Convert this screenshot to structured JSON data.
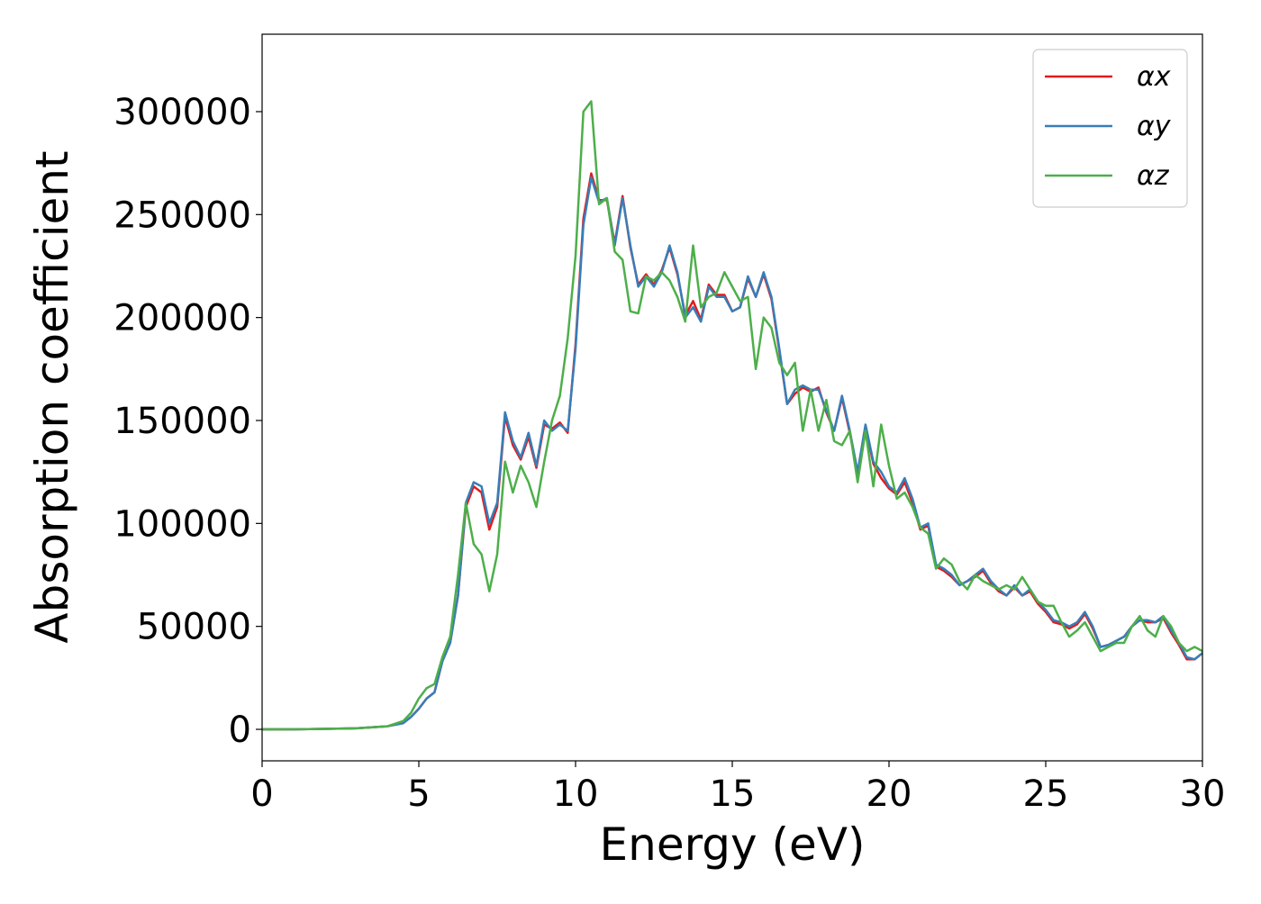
{
  "chart_data": {
    "type": "line",
    "xlabel": "Energy (eV)",
    "ylabel": "Absorption coefficient",
    "x": [
      0,
      1,
      2,
      3,
      4,
      4.5,
      4.75,
      5,
      5.25,
      5.5,
      5.75,
      6,
      6.25,
      6.5,
      6.75,
      7,
      7.25,
      7.5,
      7.75,
      8,
      8.25,
      8.5,
      8.75,
      9,
      9.25,
      9.5,
      9.75,
      10,
      10.25,
      10.5,
      10.75,
      11,
      11.25,
      11.5,
      11.75,
      12,
      12.25,
      12.5,
      12.75,
      13,
      13.25,
      13.5,
      13.75,
      14,
      14.25,
      14.5,
      14.75,
      15,
      15.25,
      15.5,
      15.75,
      16,
      16.25,
      16.5,
      16.75,
      17,
      17.25,
      17.5,
      17.75,
      18,
      18.25,
      18.5,
      18.75,
      19,
      19.25,
      19.5,
      19.75,
      20,
      20.25,
      20.5,
      20.75,
      21,
      21.25,
      21.5,
      21.75,
      22,
      22.25,
      22.5,
      22.75,
      23,
      23.25,
      23.5,
      23.75,
      24,
      24.25,
      24.5,
      24.75,
      25,
      25.25,
      25.5,
      25.75,
      26,
      26.25,
      26.5,
      26.75,
      27,
      27.25,
      27.5,
      27.75,
      28,
      28.25,
      28.5,
      28.75,
      29,
      29.25,
      29.5,
      29.75,
      30
    ],
    "series": [
      {
        "name": "αx",
        "color": "#e41a1c",
        "values": [
          0,
          0,
          200,
          500,
          1500,
          3000,
          6000,
          10000,
          15000,
          18000,
          33000,
          42000,
          65000,
          108000,
          118000,
          115000,
          97000,
          108000,
          152000,
          138000,
          131000,
          142000,
          127000,
          148000,
          146000,
          149000,
          144000,
          187000,
          248000,
          270000,
          257000,
          257000,
          236000,
          259000,
          234000,
          216000,
          221000,
          216000,
          223000,
          234000,
          221000,
          201000,
          208000,
          199000,
          216000,
          211000,
          211000,
          203000,
          205000,
          219000,
          210000,
          221000,
          209000,
          184000,
          158000,
          163000,
          166000,
          164000,
          166000,
          154000,
          145000,
          161000,
          144000,
          124000,
          147000,
          129000,
          122000,
          117000,
          114000,
          120000,
          110000,
          97000,
          99000,
          79000,
          77000,
          74000,
          70000,
          72000,
          74000,
          77000,
          71000,
          67000,
          65000,
          69000,
          65000,
          67000,
          61000,
          57000,
          52000,
          51000,
          49000,
          51000,
          56000,
          49000,
          40000,
          41000,
          43000,
          45000,
          50000,
          53000,
          52000,
          52000,
          54000,
          47000,
          41000,
          34000,
          34000,
          37000
        ]
      },
      {
        "name": "αy",
        "color": "#377eb8",
        "values": [
          0,
          0,
          200,
          500,
          1500,
          3000,
          6000,
          10000,
          15000,
          18000,
          33000,
          42000,
          65000,
          110000,
          120000,
          118000,
          100000,
          110000,
          154000,
          140000,
          132000,
          144000,
          128000,
          150000,
          145000,
          148000,
          145000,
          185000,
          245000,
          268000,
          256000,
          258000,
          235000,
          258000,
          235000,
          215000,
          220000,
          215000,
          222000,
          235000,
          222000,
          200000,
          205000,
          198000,
          215000,
          210000,
          210000,
          203000,
          205000,
          220000,
          210000,
          222000,
          210000,
          185000,
          158000,
          165000,
          167000,
          165000,
          165000,
          155000,
          145000,
          162000,
          145000,
          125000,
          148000,
          130000,
          125000,
          118000,
          115000,
          122000,
          112000,
          98000,
          100000,
          80000,
          78000,
          75000,
          70000,
          72000,
          75000,
          78000,
          72000,
          68000,
          65000,
          70000,
          65000,
          68000,
          62000,
          58000,
          53000,
          52000,
          50000,
          52000,
          57000,
          50000,
          40000,
          41000,
          43000,
          45000,
          50000,
          53000,
          53000,
          52000,
          55000,
          48000,
          42000,
          35000,
          34000,
          37000
        ]
      },
      {
        "name": "αz",
        "color": "#4daf4a",
        "values": [
          0,
          0,
          200,
          500,
          1500,
          4000,
          8000,
          15000,
          20000,
          22000,
          35000,
          45000,
          75000,
          110000,
          90000,
          85000,
          67000,
          85000,
          130000,
          115000,
          128000,
          120000,
          108000,
          130000,
          150000,
          162000,
          190000,
          230000,
          300000,
          305000,
          255000,
          258000,
          232000,
          228000,
          203000,
          202000,
          220000,
          218000,
          222000,
          218000,
          210000,
          198000,
          235000,
          205000,
          210000,
          212000,
          222000,
          215000,
          208000,
          210000,
          175000,
          200000,
          195000,
          178000,
          172000,
          178000,
          145000,
          165000,
          145000,
          160000,
          140000,
          138000,
          145000,
          120000,
          145000,
          118000,
          148000,
          128000,
          112000,
          115000,
          108000,
          98000,
          95000,
          78000,
          83000,
          80000,
          72000,
          68000,
          75000,
          72000,
          70000,
          68000,
          70000,
          68000,
          74000,
          68000,
          62000,
          60000,
          60000,
          52000,
          45000,
          48000,
          52000,
          45000,
          38000,
          40000,
          42000,
          42000,
          50000,
          55000,
          48000,
          45000,
          55000,
          50000,
          42000,
          38000,
          40000,
          38000
        ]
      }
    ],
    "xlim": [
      0,
      30
    ],
    "xticks": [
      0,
      5,
      10,
      15,
      20,
      25,
      30
    ],
    "ylim": [
      -15300,
      337600
    ],
    "yticks": [
      0,
      50000,
      100000,
      150000,
      200000,
      250000,
      300000
    ],
    "legend": "upper right"
  }
}
